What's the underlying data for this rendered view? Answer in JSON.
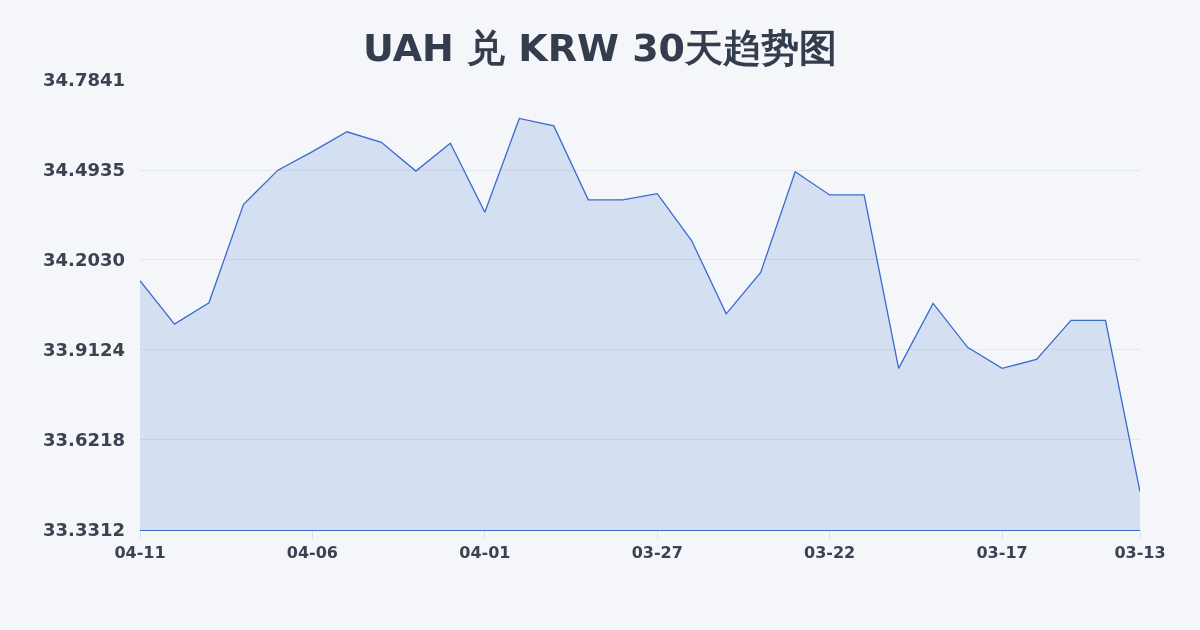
{
  "chart_data": {
    "type": "area",
    "title": "UAH 兑 KRW 30天趋势图",
    "categories": [
      "04-11",
      null,
      null,
      null,
      null,
      "04-06",
      null,
      null,
      null,
      null,
      "04-01",
      null,
      null,
      null,
      null,
      "03-27",
      null,
      null,
      null,
      null,
      "03-22",
      null,
      null,
      null,
      null,
      "03-17",
      null,
      null,
      null,
      "03-13"
    ],
    "series": [
      {
        "color": "#3a6bcc",
        "values": [
          34.136,
          33.996,
          34.065,
          34.382,
          34.493,
          34.553,
          34.617,
          34.583,
          34.49,
          34.58,
          34.357,
          34.66,
          34.636,
          34.397,
          34.397,
          34.417,
          34.265,
          34.029,
          34.163,
          34.488,
          34.413,
          34.413,
          33.853,
          34.063,
          33.921,
          33.853,
          33.882,
          34.008,
          34.008,
          33.455
        ]
      }
    ],
    "ylim": [
      33.3312,
      34.7841
    ],
    "yticks": [
      33.3312,
      33.6218,
      33.9124,
      {
        "value": 34.203,
        "label": "34.2030"
      },
      34.4935,
      34.7841
    ],
    "grid": "y"
  }
}
